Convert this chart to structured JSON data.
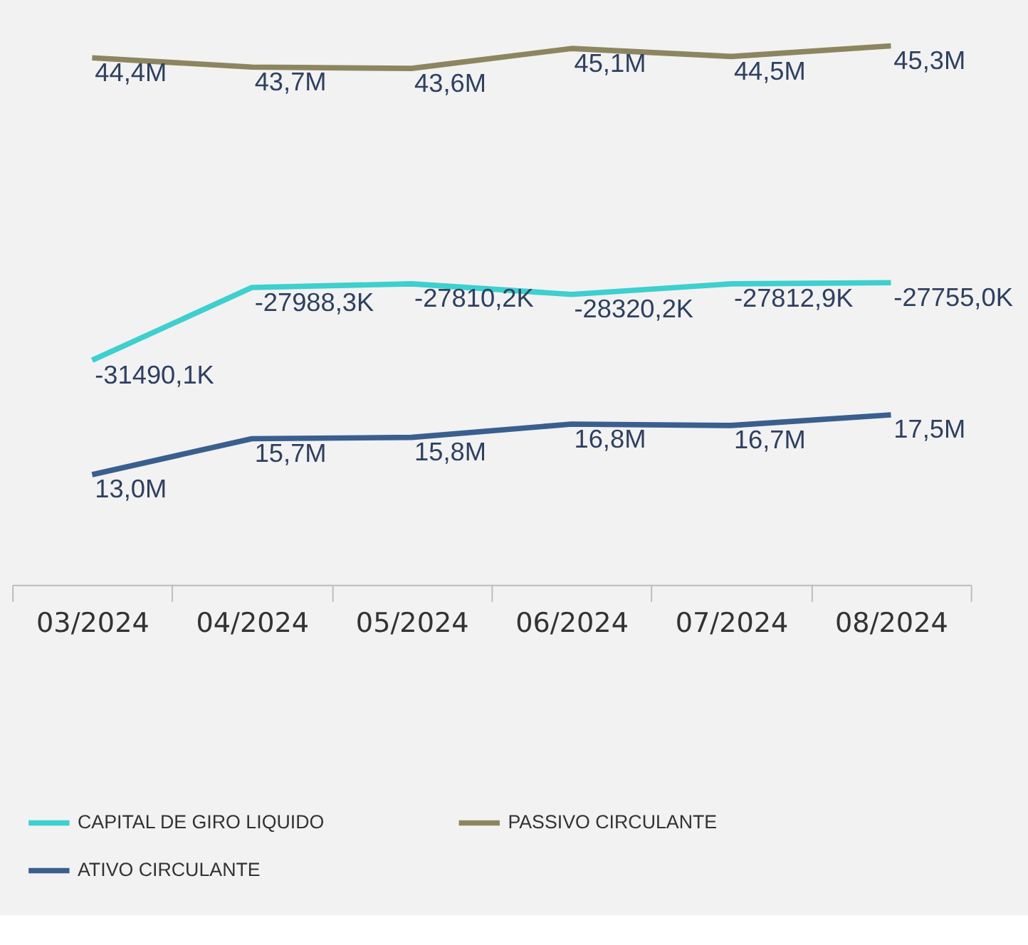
{
  "chart_data": {
    "type": "line",
    "categories": [
      "03/2024",
      "04/2024",
      "05/2024",
      "06/2024",
      "07/2024",
      "08/2024"
    ],
    "series": [
      {
        "name": "CAPITAL DE GIRO LIQUIDO",
        "color": "#3ecfcf",
        "axis": "y2",
        "values": [
          -31490.1,
          -27988.3,
          -27810.2,
          -28320.2,
          -27812.9,
          -27755.0
        ],
        "value_labels": [
          "-31490,1K",
          "-27988,3K",
          "-27810,2K",
          "-28320,2K",
          "-27812,9K",
          "-27755,0K"
        ]
      },
      {
        "name": "PASSIVO CIRCULANTE",
        "color": "#8c8660",
        "axis": "y",
        "values": [
          44.4,
          43.7,
          43.6,
          45.1,
          44.5,
          45.3
        ],
        "value_labels": [
          "44,4M",
          "43,7M",
          "43,6M",
          "45,1M",
          "44,5M",
          "45,3M"
        ]
      },
      {
        "name": "ATIVO CIRCULANTE",
        "color": "#3a5f8f",
        "axis": "y",
        "values": [
          13.0,
          15.7,
          15.8,
          16.8,
          16.7,
          17.5
        ],
        "value_labels": [
          "13,0M",
          "15,7M",
          "15,8M",
          "16,8M",
          "16,7M",
          "17,5M"
        ]
      }
    ],
    "legend": "bottom",
    "grid": false,
    "marker": "none",
    "line_style": "solid",
    "tick_labels": "x"
  }
}
